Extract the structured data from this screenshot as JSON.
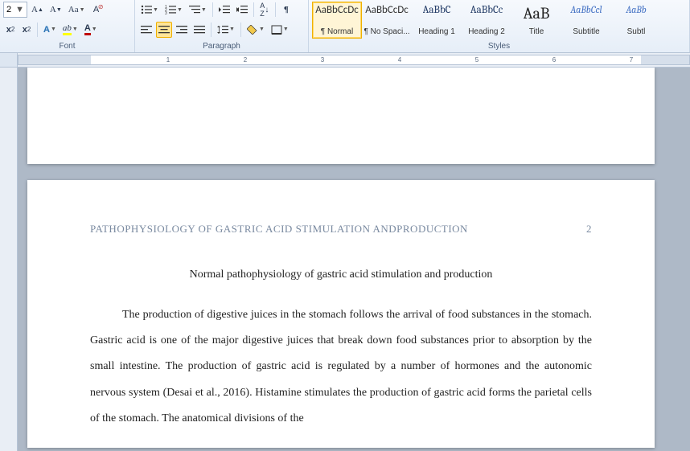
{
  "ribbon": {
    "font_size_value": "2",
    "groups": {
      "font": "Font",
      "paragraph": "Paragraph",
      "styles": "Styles"
    },
    "styles": [
      {
        "preview": "AaBbCcDc",
        "label": "¶ Normal",
        "cls": "norm",
        "selected": true
      },
      {
        "preview": "AaBbCcDc",
        "label": "¶ No Spaci...",
        "cls": "norm",
        "selected": false
      },
      {
        "preview": "AaBbC",
        "label": "Heading 1",
        "cls": "",
        "selected": false
      },
      {
        "preview": "AaBbCc",
        "label": "Heading 2",
        "cls": "",
        "selected": false
      },
      {
        "preview": "AaB",
        "label": "Title",
        "cls": "title",
        "selected": false
      },
      {
        "preview": "AaBbCcl",
        "label": "Subtitle",
        "cls": "sub",
        "selected": false
      },
      {
        "preview": "AaBb",
        "label": "Subtl",
        "cls": "sub",
        "selected": false
      }
    ]
  },
  "ruler": {
    "marks": [
      "1",
      "2",
      "3",
      "4",
      "5",
      "6",
      "7"
    ]
  },
  "document": {
    "running_head": "PATHOPHYSIOLOGY OF GASTRIC ACID STIMULATION ANDPRODUCTION",
    "page_number": "2",
    "title": "Normal pathophysiology of gastric acid stimulation and production",
    "body": "The production of digestive juices in the stomach follows the arrival of food substances in the stomach. Gastric acid is one of the major digestive juices that break down food substances prior to absorption by the small intestine. The production of gastric acid is regulated by a number of hormones and the autonomic nervous system (Desai et al., 2016). Histamine stimulates the production of gastric acid forms the parietal cells of the stomach. The anatomical divisions of the"
  },
  "colors": {
    "ribbon_top": "#f6f9fd",
    "ribbon_bottom": "#e6eef8",
    "page_bg": "#aeb9c7",
    "selection": "#fff5d6",
    "selection_border": "#f0b000"
  }
}
